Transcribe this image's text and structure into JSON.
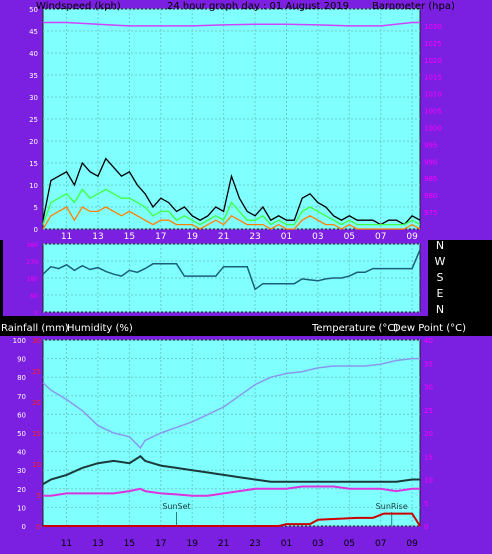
{
  "top_panel": {
    "windspeed_label": "Windspeed (kph)",
    "title": "24 hour graph day : 01 August 2019",
    "barometer_label": "Barometer (hpa)"
  },
  "direction_letters": [
    "N",
    "W",
    "S",
    "E",
    "N"
  ],
  "bottom_panel": {
    "rain_label": "Rainfall (mm)",
    "humidity_label": "Humidity (%)",
    "temp_label": "Temperature (°C)",
    "dew_label": "Dew Point (°C)",
    "sunset_label": "SunSet",
    "sunrise_label": "SunRise"
  },
  "colors": {
    "background": "#000000",
    "frame": "#7b1fe0",
    "plot_bg": "#80ffff",
    "grid": "#6ecaca",
    "axis_text_left": "#ffffff",
    "axis_text_right": "#ff00ff",
    "wind_gust": "#000000",
    "wind_avg": "#40ff40",
    "wind_speed": "#ff8000",
    "barometer": "#cc44ff",
    "direction": "#1a5f7a",
    "temperature": "#1a3a3a",
    "dew_point": "#dd33dd",
    "humidity": "#8899ee",
    "rainfall": "#cc0000"
  },
  "chart_data": [
    {
      "type": "line",
      "name": "wind_and_barometer",
      "x_tick_labels": [
        "11",
        "13",
        "15",
        "17",
        "19",
        "21",
        "23",
        "01",
        "03",
        "05",
        "07",
        "09"
      ],
      "x_range": [
        9.5,
        33.5
      ],
      "left_axis": {
        "ylim": [
          0,
          50
        ],
        "ticks": [
          0,
          5,
          10,
          15,
          20,
          25,
          30,
          35,
          40,
          45,
          50
        ]
      },
      "right_axis": {
        "ylim": [
          970,
          1035
        ],
        "ticks": [
          975,
          980,
          985,
          990,
          995,
          1000,
          1005,
          1010,
          1015,
          1020,
          1025,
          1030
        ]
      },
      "series": [
        {
          "name": "Barometer",
          "axis": "right",
          "x": [
            9.5,
            11,
            13,
            15,
            17,
            19,
            21,
            23,
            25,
            27,
            29,
            31,
            33,
            33.5
          ],
          "y": [
            1031,
            1031,
            1030.5,
            1030,
            1030,
            1030,
            1030.3,
            1030.5,
            1030.5,
            1030.3,
            1030,
            1030,
            1031,
            1031
          ]
        },
        {
          "name": "Wind gust",
          "axis": "left",
          "x": [
            9.5,
            10,
            10.5,
            11,
            11.5,
            12,
            12.5,
            13,
            13.5,
            14,
            14.5,
            15,
            15.5,
            16,
            16.5,
            17,
            17.5,
            18,
            18.5,
            19,
            19.5,
            20,
            20.5,
            21,
            21.5,
            22,
            22.5,
            23,
            23.5,
            24,
            24.5,
            25,
            25.5,
            26,
            26.5,
            27,
            27.5,
            28,
            28.5,
            29,
            29.5,
            30,
            30.5,
            31,
            31.5,
            32,
            32.5,
            33,
            33.5
          ],
          "y": [
            2,
            11,
            12,
            13,
            10,
            15,
            13,
            12,
            16,
            14,
            12,
            13,
            10,
            8,
            5,
            7,
            6,
            4,
            5,
            3,
            2,
            3,
            5,
            4,
            12,
            7,
            4,
            3,
            5,
            2,
            3,
            2,
            2,
            7,
            8,
            6,
            5,
            3,
            2,
            3,
            2,
            2,
            2,
            1,
            2,
            2,
            1,
            3,
            2
          ]
        },
        {
          "name": "Wind average",
          "axis": "left",
          "x": [
            9.5,
            10,
            10.5,
            11,
            11.5,
            12,
            12.5,
            13,
            13.5,
            14,
            14.5,
            15,
            15.5,
            16,
            16.5,
            17,
            17.5,
            18,
            18.5,
            19,
            19.5,
            20,
            20.5,
            21,
            21.5,
            22,
            22.5,
            23,
            23.5,
            24,
            24.5,
            25,
            25.5,
            26,
            26.5,
            27,
            27.5,
            28,
            28.5,
            29,
            29.5,
            30,
            30.5,
            31,
            31.5,
            32,
            32.5,
            33,
            33.5
          ],
          "y": [
            1,
            6,
            7,
            8,
            6,
            9,
            7,
            8,
            9,
            8,
            7,
            7,
            6,
            5,
            3,
            4,
            4,
            2,
            3,
            2,
            1,
            2,
            3,
            2,
            6,
            4,
            2,
            2,
            3,
            1,
            2,
            1,
            1,
            4,
            5,
            4,
            3,
            2,
            1,
            2,
            1,
            1,
            1,
            1,
            1,
            1,
            1,
            2,
            1
          ]
        },
        {
          "name": "Wind speed",
          "axis": "left",
          "x": [
            9.5,
            10,
            10.5,
            11,
            11.5,
            12,
            12.5,
            13,
            13.5,
            14,
            14.5,
            15,
            15.5,
            16,
            16.5,
            17,
            17.5,
            18,
            18.5,
            19,
            19.5,
            20,
            20.5,
            21,
            21.5,
            22,
            22.5,
            23,
            23.5,
            24,
            24.5,
            25,
            25.5,
            26,
            26.5,
            27,
            27.5,
            28,
            28.5,
            29,
            29.5,
            30,
            30.5,
            31,
            31.5,
            32,
            32.5,
            33,
            33.5
          ],
          "y": [
            0,
            3,
            4,
            5,
            2,
            5,
            4,
            4,
            5,
            4,
            3,
            4,
            3,
            2,
            1,
            2,
            2,
            1,
            1,
            1,
            0,
            1,
            2,
            1,
            3,
            2,
            1,
            1,
            1,
            0,
            1,
            0,
            0,
            2,
            3,
            2,
            1,
            1,
            0,
            1,
            0,
            0,
            0,
            0,
            0,
            0,
            0,
            1,
            0
          ]
        }
      ]
    },
    {
      "type": "line",
      "name": "wind_direction",
      "x_range": [
        9.5,
        33.5
      ],
      "ylim": [
        0,
        360
      ],
      "y_tick_labels": [
        "0",
        "90",
        "180",
        "270",
        "360"
      ],
      "series": [
        {
          "name": "Direction",
          "x": [
            9.5,
            10,
            10.5,
            11,
            11.5,
            12,
            12.5,
            13,
            13.5,
            14,
            14.5,
            15,
            15.5,
            16,
            16.5,
            17,
            17.5,
            18,
            18.5,
            19,
            19.5,
            20,
            20.5,
            21,
            21.5,
            22,
            22.5,
            23,
            23.5,
            24,
            24.5,
            25,
            25.5,
            26,
            26.5,
            27,
            27.5,
            28,
            28.5,
            29,
            29.5,
            30,
            30.5,
            31,
            31.5,
            32,
            32.5,
            33,
            33.5
          ],
          "y": [
            200,
            240,
            230,
            250,
            220,
            245,
            225,
            235,
            215,
            200,
            190,
            220,
            210,
            230,
            255,
            255,
            255,
            255,
            190,
            190,
            190,
            190,
            190,
            240,
            240,
            240,
            240,
            120,
            150,
            150,
            150,
            150,
            150,
            175,
            170,
            165,
            175,
            180,
            180,
            190,
            210,
            210,
            230,
            230,
            230,
            230,
            230,
            230,
            330
          ]
        }
      ]
    },
    {
      "type": "line",
      "name": "temperature_humidity_rain",
      "x_tick_labels": [
        "11",
        "13",
        "15",
        "17",
        "19",
        "21",
        "23",
        "01",
        "03",
        "05",
        "07",
        "09"
      ],
      "x_range": [
        9.5,
        33.5
      ],
      "humidity_axis": {
        "ylim": [
          0,
          100
        ],
        "ticks": [
          0,
          10,
          20,
          30,
          40,
          50,
          60,
          70,
          80,
          90,
          100
        ]
      },
      "rainfall_axis": {
        "ylim": [
          0,
          30
        ],
        "ticks": [
          0,
          5,
          10,
          15,
          20,
          25,
          30
        ]
      },
      "temperature_axis": {
        "ylim": [
          0,
          40
        ],
        "ticks": [
          0,
          5,
          10,
          15,
          20,
          25,
          30,
          35,
          40
        ]
      },
      "series": [
        {
          "name": "Humidity",
          "axis": "humidity",
          "x": [
            9.5,
            10,
            11,
            12,
            13,
            14,
            15,
            15.7,
            16,
            17,
            18,
            19,
            20,
            21,
            22,
            23,
            24,
            25,
            26,
            27,
            28,
            29,
            30,
            31,
            32,
            33,
            33.5
          ],
          "y": [
            77,
            73,
            68,
            62,
            54,
            50,
            48,
            42,
            46,
            50,
            53,
            56,
            60,
            64,
            70,
            76,
            80,
            82,
            83,
            85,
            86,
            86,
            86,
            87,
            89,
            90,
            90
          ]
        },
        {
          "name": "Temperature",
          "axis": "temperature",
          "x": [
            9.5,
            10,
            11,
            12,
            13,
            14,
            15,
            15.7,
            16,
            17,
            18,
            19,
            20,
            21,
            22,
            23,
            24,
            25,
            26,
            27,
            28,
            29,
            30,
            31,
            32,
            33,
            33.5
          ],
          "y": [
            9,
            10,
            11,
            12.5,
            13.5,
            14,
            13.5,
            15,
            14,
            13,
            12.5,
            12,
            11.5,
            11,
            10.5,
            10,
            9.5,
            9.5,
            9.5,
            9.5,
            9.5,
            9.5,
            9.5,
            9.5,
            9.5,
            10,
            10
          ]
        },
        {
          "name": "Dew point",
          "axis": "temperature",
          "x": [
            9.5,
            10,
            11,
            12,
            13,
            14,
            15,
            15.7,
            16,
            17,
            18,
            19,
            20,
            21,
            22,
            23,
            24,
            25,
            26,
            27,
            28,
            29,
            30,
            31,
            32,
            33,
            33.5
          ],
          "y": [
            6.5,
            6.5,
            7,
            7,
            7,
            7,
            7.5,
            8,
            7.5,
            7,
            6.8,
            6.5,
            6.5,
            7,
            7.5,
            8,
            8,
            8,
            8.5,
            8.5,
            8.5,
            8,
            8,
            8,
            7.5,
            8,
            8
          ]
        },
        {
          "name": "Rainfall",
          "axis": "rainfall",
          "x": [
            9.5,
            24.5,
            25,
            26.5,
            27,
            29.5,
            30.5,
            31.2,
            33,
            33.5
          ],
          "y": [
            0,
            0,
            0.3,
            0.3,
            1,
            1.3,
            1.3,
            2,
            2,
            0
          ]
        }
      ],
      "markers": [
        {
          "label": "SunSet",
          "x": 18
        },
        {
          "label": "SunRise",
          "x": 31.7
        }
      ]
    }
  ]
}
